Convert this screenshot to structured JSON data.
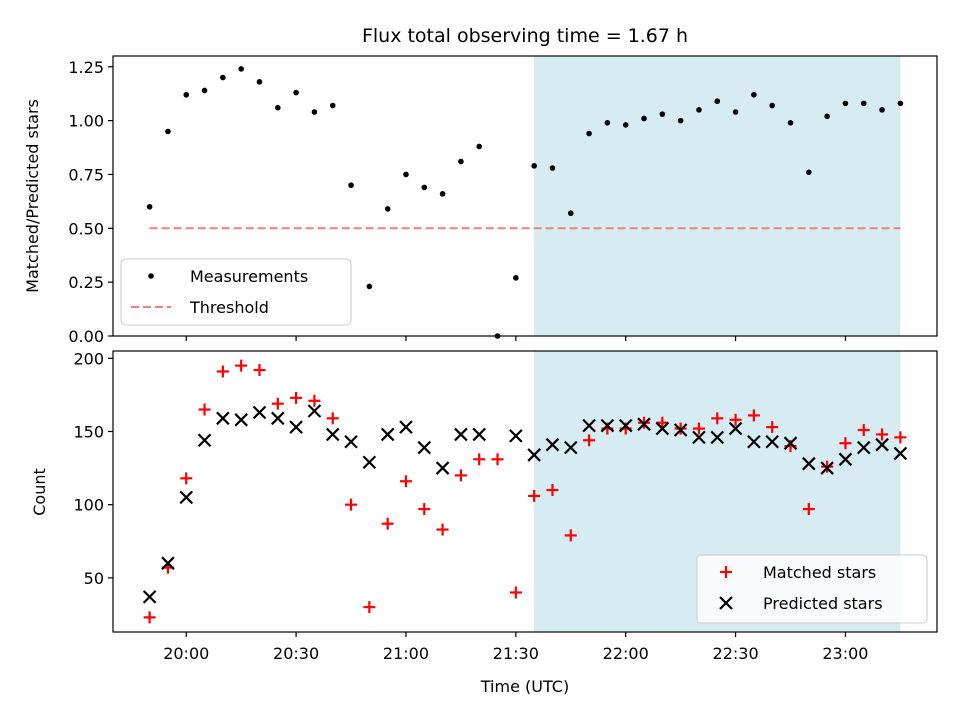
{
  "chart_data": [
    {
      "type": "scatter",
      "title": "Flux total observing time = 1.67 h",
      "xlabel": "",
      "ylabel": "Matched/Predicted stars",
      "ylim": [
        0,
        1.3
      ],
      "yticks": [
        "0.00",
        "0.25",
        "0.50",
        "0.75",
        "1.00",
        "1.25"
      ],
      "ytick_values": [
        0,
        0.25,
        0.5,
        0.75,
        1.0,
        1.25
      ],
      "xlim": [
        "19:40",
        "23:25"
      ],
      "xtick_values": [
        "20:00",
        "20:30",
        "21:00",
        "21:30",
        "22:00",
        "22:30",
        "23:00"
      ],
      "shaded_region": {
        "x_start": "21:35",
        "x_end": "23:15",
        "color": "#add8e6"
      },
      "legend_placement": "lower-left",
      "series": [
        {
          "name": "Measurements",
          "marker": "dot",
          "color": "#000000",
          "x": [
            "19:50",
            "19:55",
            "20:00",
            "20:05",
            "20:10",
            "20:15",
            "20:20",
            "20:25",
            "20:30",
            "20:35",
            "20:40",
            "20:45",
            "20:50",
            "20:55",
            "21:00",
            "21:05",
            "21:10",
            "21:15",
            "21:20",
            "21:25",
            "21:30",
            "21:35",
            "21:40",
            "21:45",
            "21:50",
            "21:55",
            "22:00",
            "22:05",
            "22:10",
            "22:15",
            "22:20",
            "22:25",
            "22:30",
            "22:35",
            "22:40",
            "22:45",
            "22:50",
            "22:55",
            "23:00",
            "23:05",
            "23:10",
            "23:15"
          ],
          "y": [
            0.6,
            0.95,
            1.12,
            1.14,
            1.2,
            1.24,
            1.18,
            1.06,
            1.13,
            1.04,
            1.07,
            0.7,
            0.23,
            0.59,
            0.75,
            0.69,
            0.66,
            0.81,
            0.88,
            0.0,
            0.27,
            0.79,
            0.78,
            0.57,
            0.94,
            0.99,
            0.98,
            1.01,
            1.03,
            1.0,
            1.05,
            1.09,
            1.04,
            1.12,
            1.07,
            0.99,
            0.76,
            1.02,
            1.08,
            1.08,
            1.05,
            1.08
          ]
        },
        {
          "name": "Threshold",
          "marker": "dashed-line",
          "color": "#f08080",
          "x": [
            "19:50",
            "23:15"
          ],
          "y": [
            0.5,
            0.5
          ]
        }
      ]
    },
    {
      "type": "scatter",
      "title": "",
      "xlabel": "Time (UTC)",
      "ylabel": "Count",
      "ylim": [
        13,
        205
      ],
      "yticks": [
        "50",
        "100",
        "150",
        "200"
      ],
      "ytick_values": [
        50,
        100,
        150,
        200
      ],
      "xlim": [
        "19:40",
        "23:25"
      ],
      "xticks": [
        "20:00",
        "20:30",
        "21:00",
        "21:30",
        "22:00",
        "22:30",
        "23:00"
      ],
      "shaded_region": {
        "x_start": "21:35",
        "x_end": "23:15",
        "color": "#add8e6"
      },
      "legend_placement": "lower-right",
      "series": [
        {
          "name": "Matched stars",
          "marker": "plus",
          "color": "#ff0000",
          "x": [
            "19:50",
            "19:55",
            "20:00",
            "20:05",
            "20:10",
            "20:15",
            "20:20",
            "20:25",
            "20:30",
            "20:35",
            "20:40",
            "20:45",
            "20:50",
            "20:55",
            "21:00",
            "21:05",
            "21:10",
            "21:15",
            "21:20",
            "21:25",
            "21:30",
            "21:35",
            "21:40",
            "21:45",
            "21:50",
            "21:55",
            "22:00",
            "22:05",
            "22:10",
            "22:15",
            "22:20",
            "22:25",
            "22:30",
            "22:35",
            "22:40",
            "22:45",
            "22:50",
            "22:55",
            "23:00",
            "23:05",
            "23:10",
            "23:15"
          ],
          "y": [
            23,
            57,
            118,
            165,
            191,
            195,
            192,
            169,
            173,
            171,
            159,
            100,
            30,
            87,
            116,
            97,
            83,
            120,
            131,
            131,
            40,
            106,
            110,
            79,
            144,
            152,
            152,
            156,
            156,
            152,
            152,
            159,
            158,
            161,
            153,
            140,
            97,
            126,
            142,
            151,
            148,
            146
          ]
        },
        {
          "name": "Predicted stars",
          "marker": "x",
          "color": "#000000",
          "x": [
            "19:50",
            "19:55",
            "20:00",
            "20:05",
            "20:10",
            "20:15",
            "20:20",
            "20:25",
            "20:30",
            "20:35",
            "20:40",
            "20:45",
            "20:50",
            "20:55",
            "21:00",
            "21:05",
            "21:10",
            "21:15",
            "21:20",
            "21:30",
            "21:35",
            "21:40",
            "21:45",
            "21:50",
            "21:55",
            "22:00",
            "22:05",
            "22:10",
            "22:15",
            "22:20",
            "22:25",
            "22:30",
            "22:35",
            "22:40",
            "22:45",
            "22:50",
            "22:55",
            "23:00",
            "23:05",
            "23:10",
            "23:15"
          ],
          "y": [
            37,
            60,
            105,
            144,
            159,
            158,
            163,
            159,
            153,
            164,
            148,
            143,
            129,
            148,
            153,
            139,
            125,
            148,
            148,
            147,
            134,
            141,
            139,
            154,
            154,
            154,
            155,
            152,
            151,
            146,
            146,
            152,
            143,
            143,
            142,
            128,
            125,
            131,
            139,
            141,
            135
          ]
        }
      ]
    }
  ]
}
